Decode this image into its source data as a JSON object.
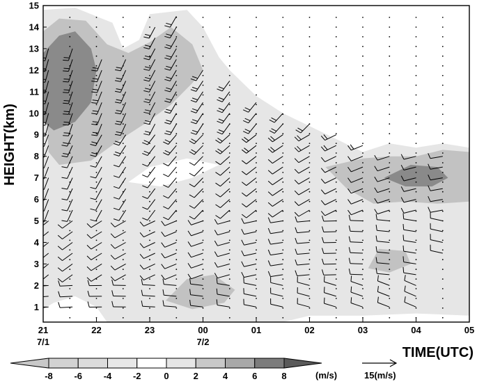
{
  "chart_data": {
    "type": "heatmap",
    "subtype": "time-height section, shaded vertical velocity with wind barbs",
    "ylabel": "HEIGHT(km)",
    "xlabel": "TIME(UTC)",
    "ylim": [
      0.3,
      15
    ],
    "y_ticks": [
      1,
      2,
      3,
      4,
      5,
      6,
      7,
      8,
      9,
      10,
      11,
      12,
      13,
      14,
      15
    ],
    "xlim": [
      21,
      29
    ],
    "x_ticks": [
      {
        "hour": 21,
        "label": "21"
      },
      {
        "hour": 22,
        "label": "22"
      },
      {
        "hour": 23,
        "label": "23"
      },
      {
        "hour": 24,
        "label": "00"
      },
      {
        "hour": 25,
        "label": "01"
      },
      {
        "hour": 26,
        "label": "02"
      },
      {
        "hour": 27,
        "label": "03"
      },
      {
        "hour": 28,
        "label": "04"
      },
      {
        "hour": 29,
        "label": "05"
      }
    ],
    "date_labels": [
      {
        "hour": 21,
        "label": "7/1"
      },
      {
        "hour": 24,
        "label": "7/2"
      }
    ],
    "colorbar": {
      "levels": [
        "-8",
        "-6",
        "-4",
        "-2",
        "0",
        "2",
        "4",
        "6",
        "8"
      ],
      "colors": [
        "#c8c8c8",
        "#d2d2d2",
        "#dcdcdc",
        "#e8e8e8",
        "#ffffff",
        "#e6e6e6",
        "#c8c8c8",
        "#a8a8a8",
        "#7c7c7c",
        "#5a5a5a"
      ],
      "unit": "(m/s)"
    },
    "reference_vector": {
      "label": "15(m/s)"
    },
    "shaded_regions": [
      {
        "level": "light",
        "points": [
          [
            21,
            0.3
          ],
          [
            29,
            0.3
          ],
          [
            29,
            8.4
          ],
          [
            28.5,
            8.6
          ],
          [
            28,
            8.4
          ],
          [
            27.5,
            8.6
          ],
          [
            27,
            8.2
          ],
          [
            26.5,
            8.8
          ],
          [
            26,
            9.4
          ],
          [
            25.5,
            10.0
          ],
          [
            25,
            10.8
          ],
          [
            24.5,
            12.0
          ],
          [
            24.3,
            12.6
          ],
          [
            24,
            14.0
          ],
          [
            23.7,
            14.8
          ],
          [
            23,
            14.6
          ],
          [
            22.8,
            13.4
          ],
          [
            22.5,
            13.0
          ],
          [
            22.3,
            14.2
          ],
          [
            21.6,
            14.9
          ],
          [
            21,
            14.8
          ]
        ]
      },
      {
        "level": "medium",
        "points": [
          [
            21.1,
            8.2
          ],
          [
            21.3,
            7.6
          ],
          [
            21.9,
            7.8
          ],
          [
            22.4,
            8.7
          ],
          [
            22.9,
            9.5
          ],
          [
            23.4,
            10.4
          ],
          [
            23.8,
            11.4
          ],
          [
            24,
            12.0
          ],
          [
            23.8,
            13.2
          ],
          [
            23.4,
            14.0
          ],
          [
            23,
            13.3
          ],
          [
            22.6,
            12.8
          ],
          [
            22.2,
            13.2
          ],
          [
            21.8,
            14.3
          ],
          [
            21.3,
            14.4
          ],
          [
            21,
            13.8
          ]
        ]
      },
      {
        "level": "dark",
        "points": [
          [
            21,
            9.6
          ],
          [
            21.2,
            9.2
          ],
          [
            21.6,
            9.6
          ],
          [
            21.9,
            10.5
          ],
          [
            22,
            12.0
          ],
          [
            21.9,
            13.0
          ],
          [
            21.6,
            13.8
          ],
          [
            21.3,
            13.6
          ],
          [
            21,
            12.8
          ]
        ]
      },
      {
        "level": "medium",
        "points": [
          [
            26.3,
            7.5
          ],
          [
            26.7,
            6.5
          ],
          [
            27.2,
            5.8
          ],
          [
            27.8,
            5.9
          ],
          [
            28.4,
            5.8
          ],
          [
            29,
            5.9
          ],
          [
            29,
            8.2
          ],
          [
            28.5,
            8.3
          ],
          [
            28,
            8.0
          ],
          [
            27.5,
            8.0
          ],
          [
            27,
            7.9
          ]
        ]
      },
      {
        "level": "dark",
        "points": [
          [
            27.4,
            7.0
          ],
          [
            27.8,
            6.6
          ],
          [
            28.3,
            6.6
          ],
          [
            28.6,
            7.0
          ],
          [
            28.4,
            7.5
          ],
          [
            27.9,
            7.6
          ]
        ]
      },
      {
        "level": "medium",
        "points": [
          [
            23.3,
            1.3
          ],
          [
            23.8,
            0.9
          ],
          [
            24.4,
            1.2
          ],
          [
            24.6,
            1.8
          ],
          [
            24.2,
            2.5
          ],
          [
            23.7,
            2.3
          ]
        ]
      },
      {
        "level": "medium",
        "points": [
          [
            27.1,
            2.8
          ],
          [
            27.5,
            2.6
          ],
          [
            27.9,
            3.0
          ],
          [
            27.8,
            3.6
          ],
          [
            27.3,
            3.7
          ]
        ]
      },
      {
        "level": "white",
        "points": [
          [
            22.6,
            6.8
          ],
          [
            23.2,
            6.6
          ],
          [
            23.8,
            7.0
          ],
          [
            24.3,
            7.6
          ],
          [
            23.7,
            7.9
          ],
          [
            23,
            7.5
          ]
        ]
      },
      {
        "level": "white",
        "points": [
          [
            21,
            0.3
          ],
          [
            22.2,
            0.3
          ],
          [
            22.0,
            1.0
          ],
          [
            21.6,
            1.5
          ],
          [
            21.2,
            1.2
          ],
          [
            21,
            0.9
          ]
        ]
      },
      {
        "level": "white",
        "points": [
          [
            25.5,
            0.3
          ],
          [
            29,
            0.3
          ],
          [
            29,
            0.6
          ],
          [
            28,
            0.7
          ],
          [
            27,
            0.6
          ],
          [
            26,
            0.6
          ]
        ]
      }
    ],
    "barb_columns": [
      {
        "hour": 21.1,
        "from_km": 1,
        "to_km": 13
      },
      {
        "hour": 21.55,
        "from_km": 1,
        "to_km": 13
      },
      {
        "hour": 22.1,
        "from_km": 1,
        "to_km": 12.5
      },
      {
        "hour": 22.55,
        "from_km": 1,
        "to_km": 12.5
      },
      {
        "hour": 23.1,
        "from_km": 1,
        "to_km": 14
      },
      {
        "hour": 23.5,
        "from_km": 1,
        "to_km": 14.5
      },
      {
        "hour": 24.0,
        "from_km": 1,
        "to_km": 12
      },
      {
        "hour": 24.5,
        "from_km": 1,
        "to_km": 11.5
      },
      {
        "hour": 25.0,
        "from_km": 1,
        "to_km": 10.5
      },
      {
        "hour": 25.5,
        "from_km": 1,
        "to_km": 10.2
      },
      {
        "hour": 26.0,
        "from_km": 1,
        "to_km": 9.8
      },
      {
        "hour": 26.5,
        "from_km": 1,
        "to_km": 9.2
      },
      {
        "hour": 27.0,
        "from_km": 1,
        "to_km": 8.6
      },
      {
        "hour": 27.5,
        "from_km": 1,
        "to_km": 8.3
      },
      {
        "hour": 28.0,
        "from_km": 1,
        "to_km": 8.2
      },
      {
        "hour": 28.5,
        "from_km": 3.5,
        "to_km": 8.0
      }
    ],
    "dot_grid": {
      "hour_step": 0.5,
      "from_km": 0.5,
      "to_km": 14.5,
      "km_step": 0.45
    }
  }
}
